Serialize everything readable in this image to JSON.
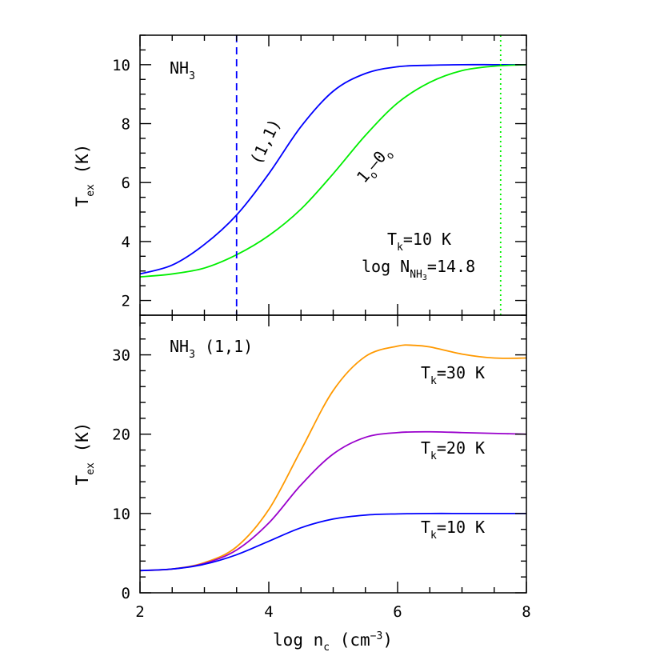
{
  "chart_data": [
    {
      "type": "line",
      "title": "",
      "xlabel": "",
      "ylabel": {
        "main": "T",
        "sub": "ex",
        "tail": " (K)"
      },
      "xlim": [
        2,
        8
      ],
      "ylim": [
        1.5,
        11
      ],
      "xticks": [
        2,
        4,
        6,
        8
      ],
      "yticks": [
        2,
        4,
        6,
        8,
        10
      ],
      "ytick_labels": [
        "2",
        "4",
        "6",
        "8",
        "10"
      ],
      "corner_label": {
        "main": "NH",
        "sub": "3"
      },
      "series": [
        {
          "name": "(1,1)",
          "color": "#0000ff",
          "x": [
            2.0,
            2.5,
            3.0,
            3.5,
            4.0,
            4.5,
            5.0,
            5.5,
            6.0,
            6.5,
            7.0,
            7.5,
            8.0
          ],
          "y": [
            2.9,
            3.2,
            3.9,
            4.9,
            6.3,
            7.9,
            9.1,
            9.7,
            9.93,
            9.98,
            10.0,
            10.0,
            10.0
          ]
        },
        {
          "name": "1o-0o",
          "color": "#00ee00",
          "x": [
            2.0,
            2.5,
            3.0,
            3.5,
            4.0,
            4.5,
            5.0,
            5.5,
            6.0,
            6.5,
            7.0,
            7.5,
            8.0
          ],
          "y": [
            2.8,
            2.9,
            3.1,
            3.55,
            4.2,
            5.1,
            6.3,
            7.6,
            8.7,
            9.4,
            9.8,
            9.95,
            10.0
          ]
        }
      ],
      "series_labels": [
        {
          "series": "(1,1)",
          "text": "(1,1)",
          "x": 3.95,
          "y": 7.3,
          "rotation": -64
        },
        {
          "series": "1o-0o",
          "main1": "1",
          "sub1": "o",
          "dash": "–",
          "main2": "0",
          "sub2": "o",
          "x": 5.35,
          "y": 6.35,
          "rotation": -50
        }
      ],
      "vlines": [
        {
          "x": 3.5,
          "color": "#0000ff",
          "style": "dashed"
        },
        {
          "x": 7.6,
          "color": "#00ee00",
          "style": "dotted"
        }
      ],
      "annotations": [
        {
          "main": "T",
          "sub": "k",
          "tail": "=10 K"
        },
        {
          "main": "log N",
          "sub": "NH",
          "subsub": "3",
          "tail": "=14.8"
        }
      ]
    },
    {
      "type": "line",
      "title": "",
      "xlabel": {
        "main": "log n",
        "sub": "c",
        "tail": " (cm",
        "sup": "−3",
        "tail2": ")"
      },
      "ylabel": {
        "main": "T",
        "sub": "ex",
        "tail": " (K)"
      },
      "xlim": [
        2,
        8
      ],
      "ylim": [
        0,
        35
      ],
      "xticks": [
        2,
        4,
        6,
        8
      ],
      "xtick_labels": [
        "2",
        "4",
        "6",
        "8"
      ],
      "yticks": [
        0,
        10,
        20,
        30
      ],
      "ytick_labels": [
        "0",
        "10",
        "20",
        "30"
      ],
      "corner_label": {
        "main": "NH",
        "sub": "3",
        "tail": " (1,1)"
      },
      "series": [
        {
          "name": "Tk=30 K",
          "color": "#ff9900",
          "x": [
            2.0,
            2.5,
            3.0,
            3.5,
            4.0,
            4.5,
            5.0,
            5.5,
            6.0,
            6.25,
            6.5,
            7.0,
            7.5,
            8.0
          ],
          "y": [
            2.8,
            3.0,
            3.8,
            5.8,
            10.5,
            18.0,
            25.5,
            29.8,
            31.1,
            31.2,
            31.0,
            30.1,
            29.6,
            29.6
          ]
        },
        {
          "name": "Tk=20 K",
          "color": "#9900cc",
          "x": [
            2.0,
            2.5,
            3.0,
            3.5,
            4.0,
            4.5,
            5.0,
            5.5,
            6.0,
            6.5,
            7.0,
            7.5,
            8.0
          ],
          "y": [
            2.8,
            3.0,
            3.7,
            5.4,
            8.8,
            13.6,
            17.5,
            19.6,
            20.2,
            20.3,
            20.2,
            20.1,
            20.0
          ]
        },
        {
          "name": "Tk=10 K",
          "color": "#0000ff",
          "x": [
            2.0,
            2.5,
            3.0,
            3.5,
            4.0,
            4.5,
            5.0,
            5.5,
            6.0,
            6.5,
            7.0,
            7.5,
            8.0
          ],
          "y": [
            2.8,
            3.0,
            3.6,
            4.8,
            6.5,
            8.2,
            9.3,
            9.8,
            9.95,
            10.0,
            10.0,
            10.0,
            10.0
          ]
        }
      ],
      "annotations": [
        {
          "main": "T",
          "sub": "k",
          "tail": "=30 K"
        },
        {
          "main": "T",
          "sub": "k",
          "tail": "=20 K"
        },
        {
          "main": "T",
          "sub": "k",
          "tail": "=10 K"
        }
      ]
    }
  ]
}
